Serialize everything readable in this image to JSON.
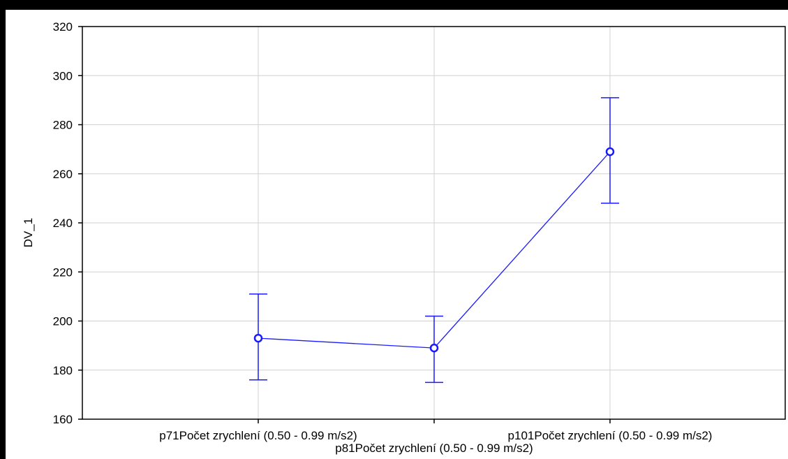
{
  "chart_data": {
    "type": "line",
    "title": "",
    "xlabel": "",
    "ylabel": "DV_1",
    "categories": [
      "p71Počet zrychlení (0.50 - 0.99 m/s2)",
      "p81Počet zrychlení (0.50 - 0.99 m/s2)",
      "p101Počet zrychlení (0.50 - 0.99 m/s2)"
    ],
    "series": [
      {
        "values": [
          193,
          189,
          269
        ],
        "error_low": [
          176,
          175,
          248
        ],
        "error_high": [
          211,
          202,
          291
        ]
      }
    ],
    "ylim": [
      160,
      320
    ],
    "yticks": [
      160,
      180,
      200,
      220,
      240,
      260,
      280,
      300,
      320
    ],
    "grid": true,
    "legend": "none",
    "colors": {
      "series": "#1a1aff",
      "grid": "#d0d0d0",
      "frame": "#000000"
    }
  }
}
